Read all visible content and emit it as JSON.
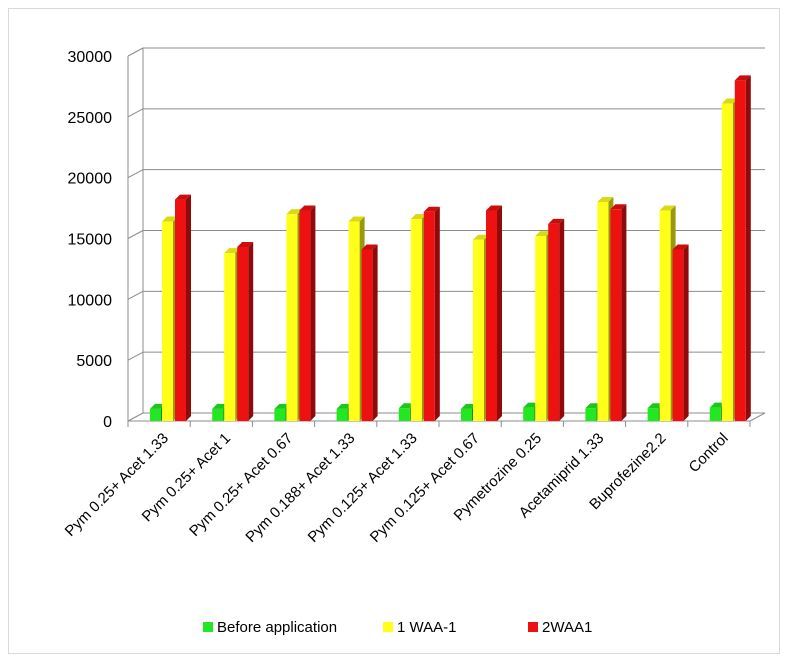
{
  "chart_data": {
    "type": "bar",
    "title": "",
    "xlabel": "",
    "ylabel": "",
    "ylim": [
      0,
      30000
    ],
    "yticks": [
      0,
      5000,
      10000,
      15000,
      20000,
      25000,
      30000
    ],
    "grid": true,
    "legend_position": "bottom",
    "categories": [
      "Pym 0.25+ Acet 1.33",
      "Pym 0.25+ Acet 1",
      "Pym 0.25+ Acet 0.67",
      "Pym 0.188+ Acet 1.33",
      "Pym 0.125+ Acet  1.33",
      "Pym 0.125+ Acet 0.67",
      "Pymetrozine 0.25",
      "Acetamiprid 1.33",
      "Buprofezine2.2",
      "Control"
    ],
    "series": [
      {
        "name": "Before application",
        "color": "#22e822",
        "values": [
          1000,
          1000,
          1000,
          1000,
          1050,
          1000,
          1100,
          1050,
          1050,
          1100
        ]
      },
      {
        "name": "1 WAA-1",
        "color": "#ffff1a",
        "values": [
          16400,
          13800,
          17000,
          16400,
          16600,
          14900,
          15200,
          18000,
          17300,
          26100
        ]
      },
      {
        "name": "2WAA1",
        "color": "#ee1111",
        "values": [
          18200,
          14300,
          17300,
          14100,
          17200,
          17300,
          16200,
          17400,
          14100,
          28000
        ]
      }
    ]
  }
}
